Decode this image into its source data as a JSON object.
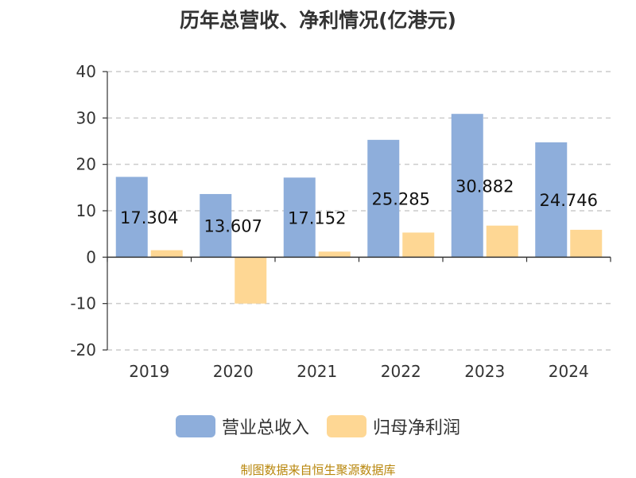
{
  "title": "历年总营收、净利情况(亿港元)",
  "source": "制图数据来自恒生聚源数据库",
  "colors": {
    "revenue": "#8eaedb",
    "profit": "#fed794",
    "axis": "#333333",
    "grid": "#cccccc"
  },
  "chart_data": {
    "type": "bar",
    "categories": [
      "2019",
      "2020",
      "2021",
      "2022",
      "2023",
      "2024"
    ],
    "series": [
      {
        "name": "营业总收入",
        "values": [
          17.304,
          13.607,
          17.152,
          25.285,
          30.882,
          24.746
        ]
      },
      {
        "name": "归母净利润",
        "values": [
          1.5,
          -10.0,
          1.2,
          5.3,
          6.8,
          5.9
        ]
      }
    ],
    "data_labels": [
      "17.304",
      "13.607",
      "17.152",
      "25.285",
      "30.882",
      "24.746"
    ],
    "ylim": [
      -20,
      40
    ],
    "yticks": [
      40,
      30,
      20,
      10,
      0,
      -10,
      -20
    ],
    "grid": true,
    "legend": "bottom"
  }
}
